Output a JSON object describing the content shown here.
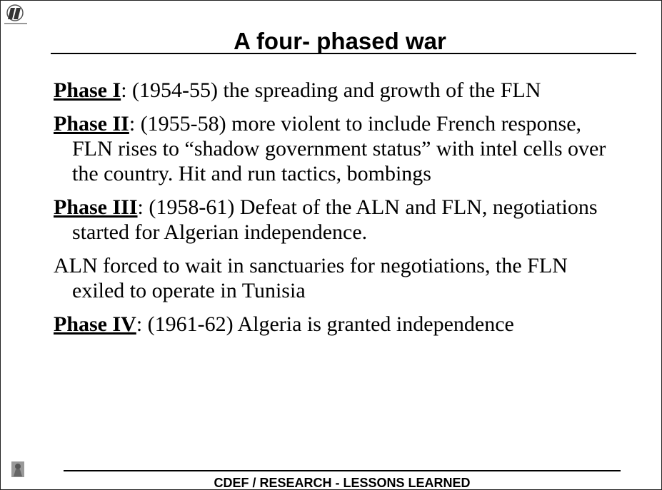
{
  "header": {
    "title": "A four- phased war"
  },
  "items": [
    {
      "label": "Phase I",
      "text": ": (1954-55) the spreading and growth of the FLN"
    },
    {
      "label": "Phase II",
      "text": ": (1955-58) more violent to include French response, FLN rises to “shadow government status” with intel cells over the country. Hit and run tactics, bombings"
    },
    {
      "label": "Phase III",
      "text": ": (1958-61) Defeat of the ALN and FLN, negotiations started for Algerian independence."
    },
    {
      "text": "ALN forced to wait in sanctuaries for negotiations, the FLN exiled to operate in Tunisia"
    },
    {
      "label": "Phase IV",
      "text": ": (1961-62) Algeria is granted independence"
    }
  ],
  "footer": {
    "text": "CDEF / RESEARCH - LESSONS LEARNED"
  }
}
